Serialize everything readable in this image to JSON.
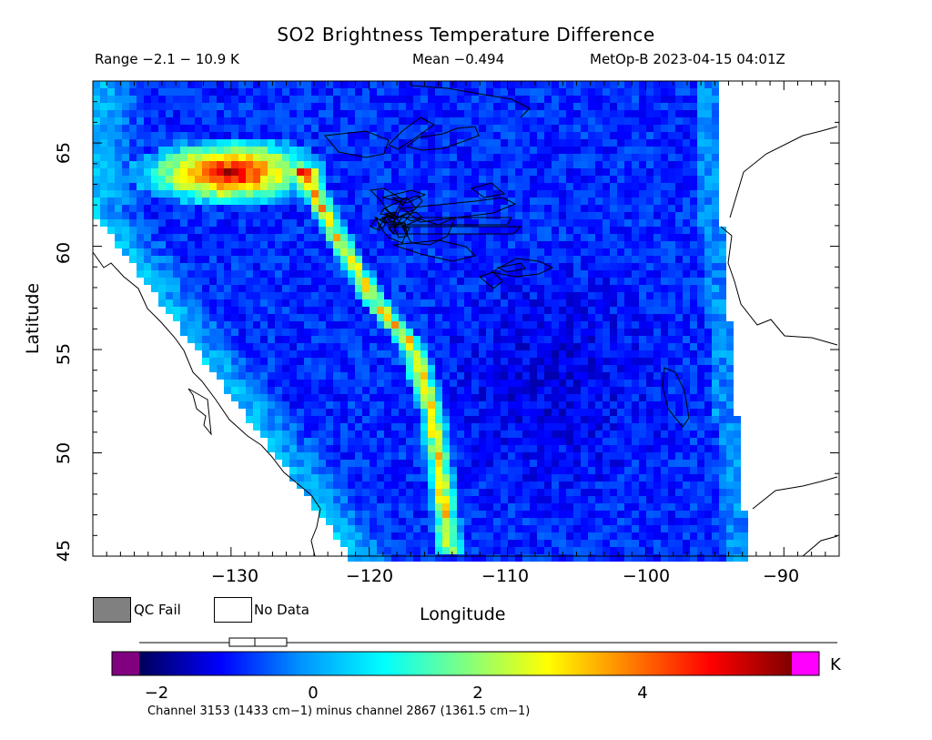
{
  "header": {
    "title": "SO2 Brightness Temperature Difference",
    "range_text": "Range −2.1 − 10.9 K",
    "mean_text": "Mean −0.494",
    "satellite_text": "MetOp-B 2023-04-15 04:01Z"
  },
  "chart_data": {
    "type": "heatmap",
    "title": "SO2 Brightness Temperature Difference",
    "xlabel": "Longitude",
    "ylabel": "Latitude",
    "xlim": [
      -140,
      -86
    ],
    "ylim": [
      45,
      68
    ],
    "x_ticks": [
      -130,
      -120,
      -110,
      -100,
      -90
    ],
    "x_tick_labels": [
      "−130",
      "−120",
      "−110",
      "−100",
      "−90"
    ],
    "y_ticks": [
      45,
      50,
      55,
      60,
      65
    ],
    "y_tick_labels": [
      "45",
      "50",
      "55",
      "60",
      "65"
    ],
    "value_range": [
      -2.1,
      10.9
    ],
    "mean": -0.494,
    "units": "K",
    "colorbar": {
      "min": -2.5,
      "max": 6.0,
      "ticks": [
        -2,
        0,
        2,
        4
      ],
      "tick_labels": [
        "−2",
        "0",
        "2",
        "4"
      ],
      "underflow_color": "#800080",
      "overflow_color": "#ff00ff",
      "stops": [
        "#00005a",
        "#0000ff",
        "#0096ff",
        "#00ffff",
        "#80ff80",
        "#ffff00",
        "#ff8000",
        "#ff0000",
        "#800000"
      ]
    },
    "legend": [
      {
        "label": "QC Fail",
        "color": "#808080"
      },
      {
        "label": "No Data",
        "color": "#ffffff"
      }
    ],
    "features": [
      {
        "name": "plume-core",
        "lat_range": [
          62.5,
          66
        ],
        "lon_range": [
          -136,
          -124
        ],
        "peak_value": 5.5
      },
      {
        "name": "so2-filament",
        "lat_range": [
          45,
          64
        ],
        "lon_range": [
          -124,
          -113
        ],
        "peak_value": 5.0
      }
    ]
  },
  "footnote": "Channel 3153 (1433 cm−1) minus channel 2867 (1361.5 cm−1)"
}
